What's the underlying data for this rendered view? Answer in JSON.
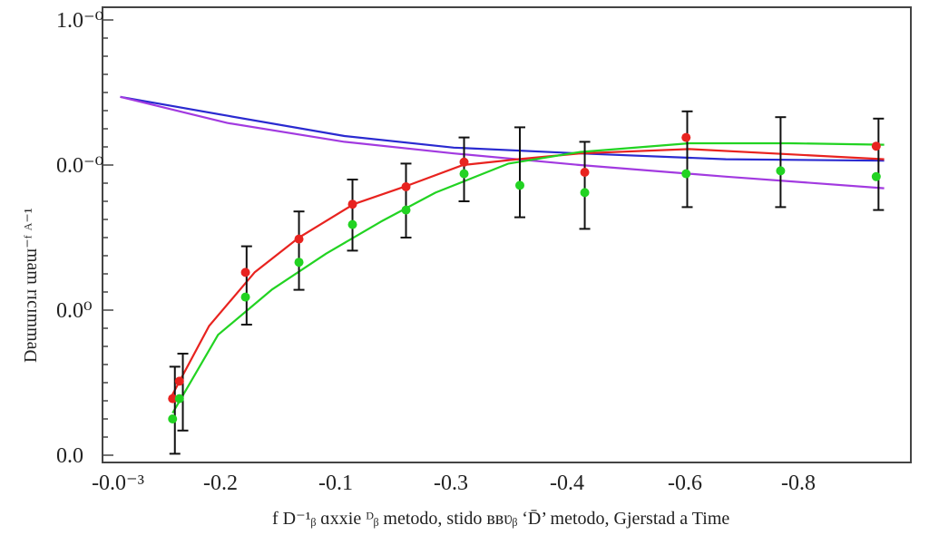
{
  "chart_data": {
    "type": "scatter",
    "title": "",
    "xlabel": "f D⁻¹ᵦ ɑxxie ᴰᵦ metodo, stido ʙʙʋᵦ ‘D̄’ metodo, Gjerstad a Time",
    "ylabel": "Dɐɯɯɪɔɪɹ ɯɐɯ⁻ᶠ ᴬ⁻¹",
    "x_tick_labels": [
      "-0.0⁻³",
      "-0.2",
      "-0.1",
      "-0.3",
      "-0.4",
      "-0.6",
      "-0.8"
    ],
    "y_tick_labels": [
      "0.0",
      "0.0⁰",
      "0.0⁻⁰",
      "1.0⁻⁰"
    ],
    "xlim": [
      -0.1,
      6.9
    ],
    "ylim": [
      -0.05,
      3.1
    ],
    "grid": false,
    "colors": {
      "red": "#e8231f",
      "green": "#22d322",
      "blue": "#2a2ad0",
      "purple": "#a23ae0",
      "errorbar": "#111111"
    },
    "points_red": {
      "x": [
        0.48,
        0.54,
        1.12,
        1.59,
        2.06,
        2.53,
        3.04,
        4.1,
        4.99,
        6.66
      ],
      "y": [
        0.39,
        0.51,
        1.26,
        1.49,
        1.73,
        1.85,
        2.02,
        1.95,
        2.19,
        2.13
      ]
    },
    "points_green": {
      "x": [
        0.48,
        0.54,
        1.12,
        1.59,
        2.06,
        2.53,
        3.04,
        3.53,
        4.1,
        4.99,
        5.82,
        6.66
      ],
      "y": [
        0.25,
        0.39,
        1.09,
        1.33,
        1.59,
        1.69,
        1.94,
        1.86,
        1.81,
        1.94,
        1.96,
        1.92
      ]
    },
    "error_bars": {
      "x": [
        0.5,
        0.57,
        1.13,
        1.59,
        2.06,
        2.53,
        3.04,
        3.53,
        4.1,
        5.0,
        5.82,
        6.68
      ],
      "low": [
        0.01,
        0.17,
        0.9,
        1.14,
        1.41,
        1.5,
        1.75,
        1.64,
        1.56,
        1.71,
        1.71,
        1.69
      ],
      "high": [
        0.61,
        0.7,
        1.44,
        1.68,
        1.9,
        2.01,
        2.19,
        2.26,
        2.16,
        2.37,
        2.33,
        2.32
      ]
    },
    "lines": [
      {
        "color": "blue",
        "x": [
          0.02,
          0.96,
          1.99,
          2.95,
          4.06,
          5.34,
          6.73
        ],
        "y": [
          2.47,
          2.34,
          2.2,
          2.12,
          2.08,
          2.04,
          2.03
        ]
      },
      {
        "color": "purple",
        "x": [
          0.02,
          0.96,
          1.99,
          2.95,
          4.06,
          5.34,
          6.73
        ],
        "y": [
          2.47,
          2.29,
          2.16,
          2.08,
          2.0,
          1.92,
          1.84
        ]
      },
      {
        "color": "red",
        "x": [
          0.46,
          0.8,
          1.2,
          1.59,
          2.07,
          2.55,
          3.03,
          3.51,
          4.06,
          5.02,
          6.73
        ],
        "y": [
          0.39,
          0.89,
          1.26,
          1.5,
          1.73,
          1.86,
          2.0,
          2.04,
          2.08,
          2.11,
          2.04
        ]
      },
      {
        "color": "green",
        "x": [
          0.48,
          0.88,
          1.35,
          1.83,
          2.31,
          2.79,
          3.43,
          4.06,
          5.02,
          5.9,
          6.73
        ],
        "y": [
          0.29,
          0.83,
          1.14,
          1.39,
          1.61,
          1.81,
          2.01,
          2.09,
          2.15,
          2.15,
          2.14
        ]
      }
    ]
  }
}
